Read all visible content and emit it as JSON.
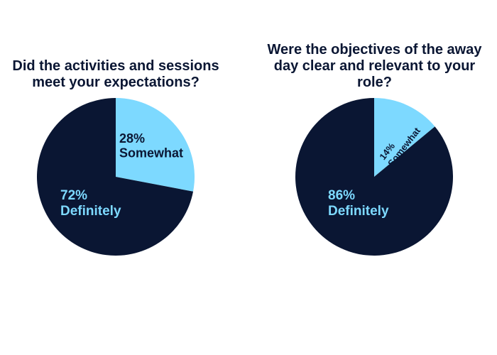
{
  "chart_data": [
    {
      "type": "pie",
      "title": "Did the activities and sessions meet your expectations?",
      "categories": [
        "Somewhat",
        "Definitely"
      ],
      "values": [
        28,
        72
      ],
      "value_labels": [
        "28%",
        "72%"
      ],
      "colors": [
        "#7dd9ff",
        "#0a1633"
      ]
    },
    {
      "type": "pie",
      "title": "Were the objectives of the away day clear and relevant to your role?",
      "categories": [
        "Somewhat",
        "Definitely"
      ],
      "values": [
        14,
        86
      ],
      "value_labels": [
        "14%",
        "86%"
      ],
      "colors": [
        "#7dd9ff",
        "#0a1633"
      ]
    }
  ]
}
